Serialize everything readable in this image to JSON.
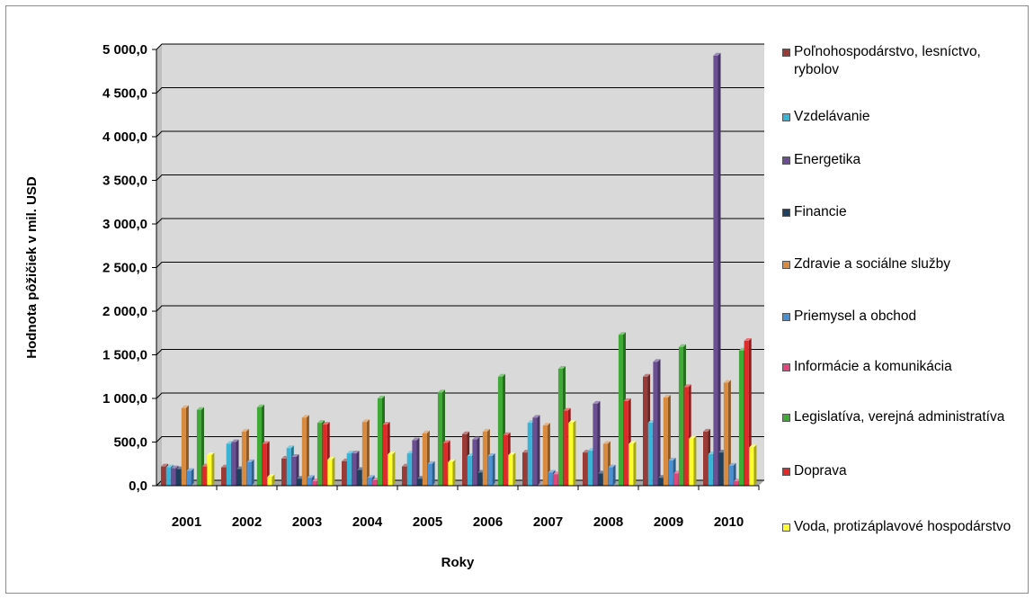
{
  "chart_data": {
    "type": "bar",
    "title": "",
    "xlabel": "Roky",
    "ylabel": "Hodnota pôžičiek v mil. USD",
    "ylim": [
      0,
      5000
    ],
    "yticks": [
      "0,0",
      "500,0",
      "1 000,0",
      "1 500,0",
      "2 000,0",
      "2 500,0",
      "3 000,0",
      "3 500,0",
      "4 000,0",
      "4 500,0",
      "5 000,0"
    ],
    "ytick_values": [
      0,
      500,
      1000,
      1500,
      2000,
      2500,
      3000,
      3500,
      4000,
      4500,
      5000
    ],
    "grid": true,
    "plot_background": "#d9d9d9",
    "legend_position": "right",
    "categories": [
      "2001",
      "2002",
      "2003",
      "2004",
      "2005",
      "2006",
      "2007",
      "2008",
      "2009",
      "2010"
    ],
    "series": [
      {
        "name": "Poľnohospodárstvo, lesníctvo, rybolov",
        "color": "#9b3b38",
        "values": [
          220,
          210,
          310,
          280,
          220,
          590,
          380,
          380,
          1250,
          620
        ]
      },
      {
        "name": "Vzdelávanie",
        "color": "#39b4d6",
        "values": [
          210,
          480,
          430,
          370,
          370,
          340,
          720,
          400,
          720,
          360
        ]
      },
      {
        "name": "Energetika",
        "color": "#6a4f93",
        "values": [
          200,
          500,
          330,
          370,
          520,
          530,
          780,
          940,
          1420,
          4930
        ]
      },
      {
        "name": "Financie",
        "color": "#1f3f5e",
        "values": [
          190,
          190,
          80,
          180,
          80,
          150,
          0,
          140,
          90,
          380
        ]
      },
      {
        "name": "Zdravie a sociálne služby",
        "color": "#d88a3f",
        "values": [
          890,
          620,
          780,
          730,
          600,
          620,
          690,
          480,
          1010,
          1180
        ]
      },
      {
        "name": "Priemysel a obchod",
        "color": "#4a8fd1",
        "values": [
          170,
          270,
          90,
          90,
          250,
          340,
          150,
          210,
          290,
          230
        ]
      },
      {
        "name": "Informácie a komunikácia",
        "color": "#e0457b",
        "values": [
          0,
          0,
          50,
          60,
          0,
          0,
          130,
          0,
          140,
          50
        ]
      },
      {
        "name": "Legislatíva, verejná administratíva",
        "color": "#3faa35",
        "values": [
          870,
          900,
          720,
          1000,
          1070,
          1250,
          1340,
          1730,
          1590,
          1550
        ]
      },
      {
        "name": "Doprava",
        "color": "#e02a2a",
        "values": [
          220,
          480,
          700,
          700,
          490,
          580,
          860,
          970,
          1130,
          1660
        ]
      },
      {
        "name": "Voda, protizáplavové hospodárstvo",
        "color": "#ffff2e",
        "values": [
          350,
          100,
          300,
          360,
          270,
          350,
          720,
          480,
          540,
          440
        ]
      }
    ]
  },
  "legend": {
    "items": [
      {
        "label": "Poľnohospodárstvo, lesníctvo, rybolov"
      },
      {
        "label": "Vzdelávanie"
      },
      {
        "label": "Energetika"
      },
      {
        "label": "Financie"
      },
      {
        "label": "Zdravie a sociálne služby"
      },
      {
        "label": "Priemysel a obchod"
      },
      {
        "label": "Informácie a komunikácia"
      },
      {
        "label": "Legislatíva, verejná administratíva"
      },
      {
        "label": "Doprava"
      },
      {
        "label": "Voda, protizáplavové hospodárstvo"
      }
    ]
  }
}
